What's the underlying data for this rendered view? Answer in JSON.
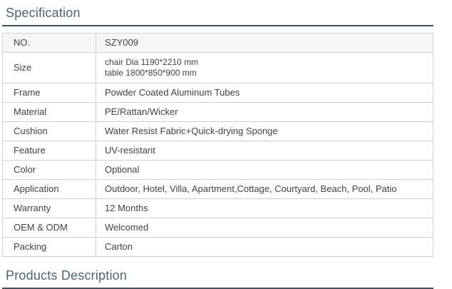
{
  "colors": {
    "heading_text": "#4e6378",
    "heading_rule": "#3e5466",
    "table_border": "#cfcfcf",
    "row_highlight_bg": "#f5f6f7",
    "cell_text": "#3f4245",
    "page_bg": "#ffffff"
  },
  "sections": {
    "specification": {
      "title": "Specification"
    },
    "products_description": {
      "title": "Products Description"
    }
  },
  "spec_table": {
    "rows": [
      {
        "label": "NO.",
        "value": "SZY009"
      },
      {
        "label": "Size",
        "value": "chair Dia 1190*2210 mm\ntable 1800*850*900 mm"
      },
      {
        "label": "Frame",
        "value": "Powder Coated Aluminum Tubes"
      },
      {
        "label": "Material",
        "value": "PE/Rattan/Wicker"
      },
      {
        "label": "Cushion",
        "value": "Water Resist Fabric+Quick-drying Sponge"
      },
      {
        "label": "Feature",
        "value": "UV-resistant"
      },
      {
        "label": "Color",
        "value": "Optional"
      },
      {
        "label": "Application",
        "value": "Outdoor, Hotel, Villa, Apartment,Cottage, Courtyard, Beach, Pool, Patio"
      },
      {
        "label": "Warranty",
        "value": "12 Months"
      },
      {
        "label": "OEM & ODM",
        "value": "Welcomed"
      },
      {
        "label": "Packing",
        "value": "Carton"
      }
    ]
  }
}
